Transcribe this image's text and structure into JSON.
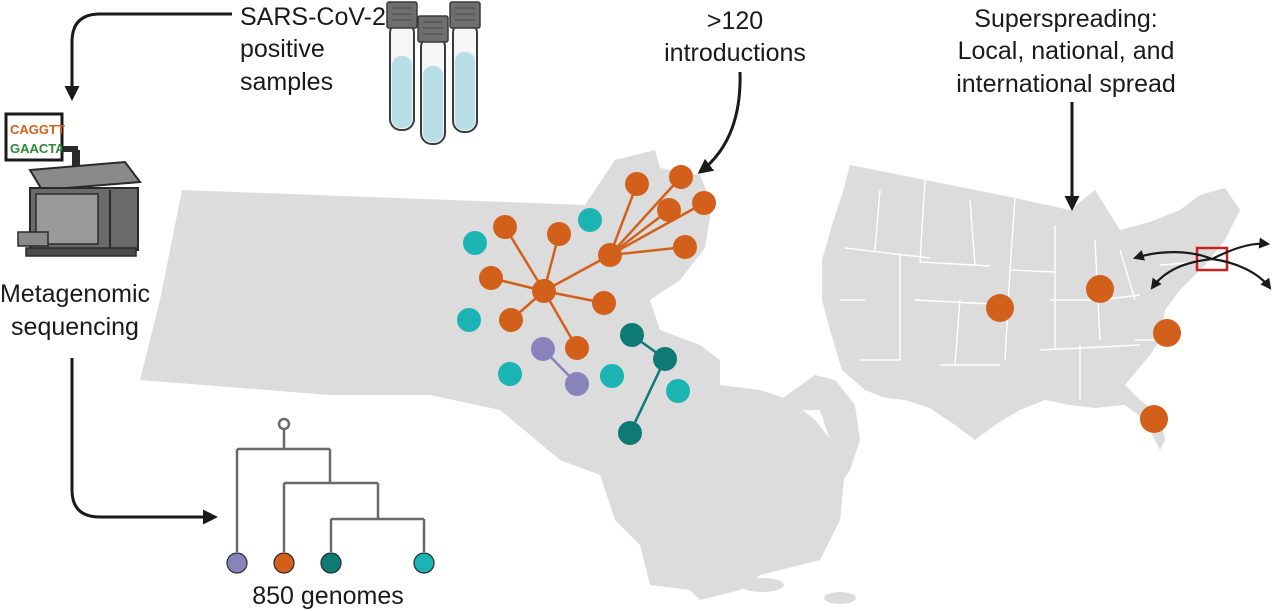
{
  "labels": {
    "samples_line1": "SARS-CoV-2",
    "samples_line2": "positive",
    "samples_line3": "samples",
    "sequencing_line1": "Metagenomic",
    "sequencing_line2": "sequencing",
    "introductions_line1": ">120",
    "introductions_line2": "introductions",
    "spread_line1": "Superspreading:",
    "spread_line2": "Local, national, and",
    "spread_line3": "international spread",
    "genomes": "850 genomes"
  },
  "sequencer_screen": {
    "line1": "CAGGTT",
    "line2": "GAACTA"
  },
  "colors": {
    "orange": "#d2601a",
    "teal": "#1ab5b2",
    "dark_teal": "#0e7a74",
    "purple": "#8a82bd",
    "map_gray": "#dcdcdc",
    "tube_liquid": "#b8dfe8",
    "highlight_red": "#c8201f"
  },
  "icons": [
    "sample-tubes-icon",
    "sequencer-icon",
    "phylogenetic-tree-icon",
    "massachusetts-map",
    "usa-map"
  ]
}
